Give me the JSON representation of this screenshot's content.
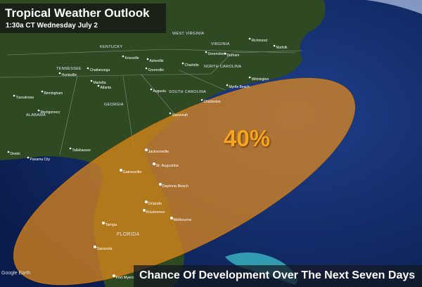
{
  "header": {
    "title": "Tropical Weather Outlook",
    "subtitle": "1:30a CT Wednesday July 2"
  },
  "outlook": {
    "probability_label": "40%",
    "probability": 40,
    "area_color": "#e58a1a"
  },
  "footer": {
    "caption": "Chance Of Development Over The Next Seven Days"
  },
  "attribution": "Google Earth",
  "states": [
    "WEST VIRGINIA",
    "VIRGINIA",
    "KENTUCKY",
    "TENNESSEE",
    "NORTH CAROLINA",
    "SOUTH CAROLINA",
    "GEORGIA",
    "ALABAMA",
    "FLORIDA"
  ],
  "cities": [
    "Jacksonville",
    "St. Augustine",
    "Gainesville",
    "Daytona Beach",
    "Orlando",
    "Kissimmee",
    "Melbourne",
    "Tampa",
    "Sarasota",
    "Fort Myers",
    "Tallahassee",
    "Panama City",
    "Destin",
    "Savannah",
    "Charleston",
    "Myrtle Beach",
    "Wilmington",
    "Augusta",
    "Greenville",
    "Charlotte",
    "Atlanta",
    "Marietta",
    "Birmingham",
    "Montgomery",
    "Tuscaloosa",
    "Chattanooga",
    "Huntsville",
    "Knoxville",
    "Asheville",
    "Greensboro",
    "Durham",
    "Richmond",
    "Norfolk"
  ]
}
